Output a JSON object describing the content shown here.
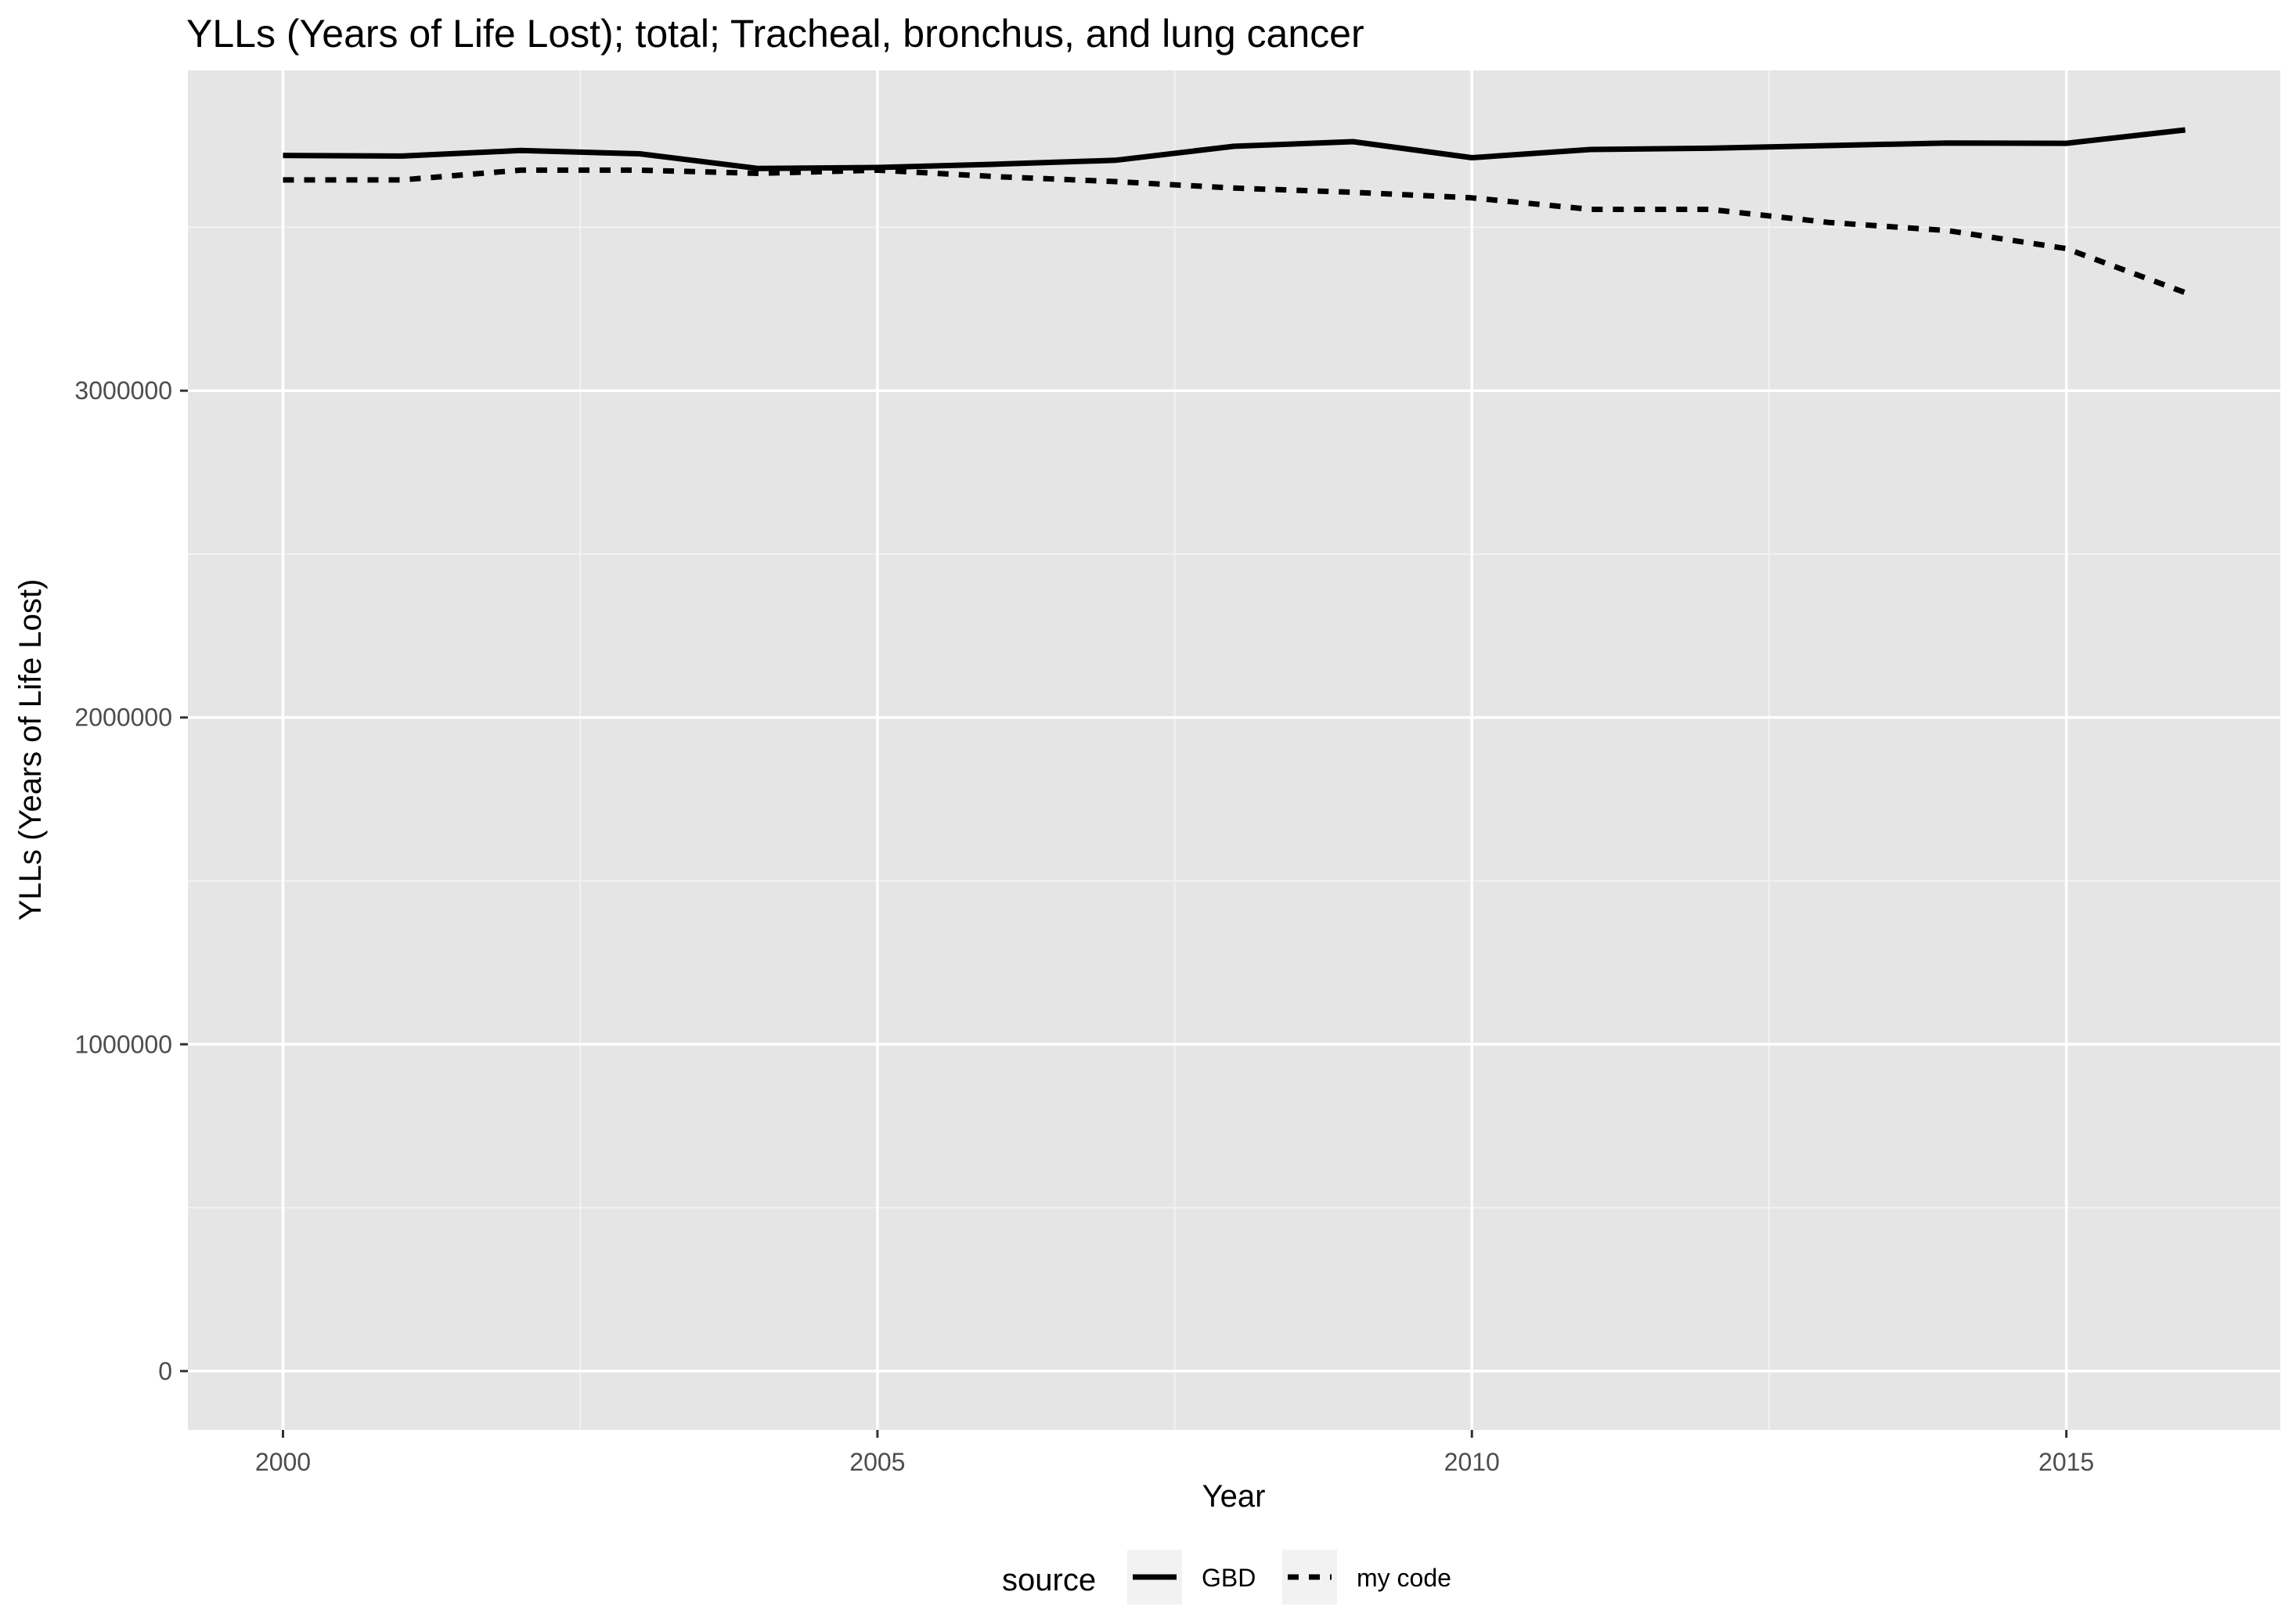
{
  "chart_data": {
    "type": "line",
    "title": "YLLs (Years of Life Lost); total; Tracheal, bronchus, and lung cancer",
    "xlabel": "Year",
    "ylabel": "YLLs (Years of Life Lost)",
    "xlim": [
      1999.2,
      2016.8
    ],
    "ylim": [
      -180000,
      3980000
    ],
    "x_ticks": [
      2000,
      2005,
      2010,
      2015
    ],
    "x_tick_labels": [
      "2000",
      "2005",
      "2010",
      "2015"
    ],
    "y_ticks": [
      0,
      1000000,
      2000000,
      3000000
    ],
    "y_tick_labels": [
      "0",
      "1000000",
      "2000000",
      "3000000"
    ],
    "grid": true,
    "legend": {
      "title": "source",
      "position": "bottom"
    },
    "x": [
      2000,
      2001,
      2002,
      2003,
      2004,
      2005,
      2006,
      2007,
      2008,
      2009,
      2010,
      2011,
      2012,
      2013,
      2014,
      2015,
      2016
    ],
    "series": [
      {
        "name": "GBD",
        "linetype": "solid",
        "color": "#000000",
        "values": [
          3720000,
          3718000,
          3735000,
          3725000,
          3680000,
          3683000,
          3693000,
          3705000,
          3748000,
          3762000,
          3713000,
          3738000,
          3742000,
          3750000,
          3758000,
          3757000,
          3798000
        ]
      },
      {
        "name": "my code",
        "linetype": "dashed",
        "color": "#000000",
        "values": [
          3645000,
          3645000,
          3675000,
          3675000,
          3665000,
          3675000,
          3655000,
          3640000,
          3620000,
          3607000,
          3590000,
          3555000,
          3555000,
          3515000,
          3490000,
          3435000,
          3300000
        ]
      }
    ]
  }
}
